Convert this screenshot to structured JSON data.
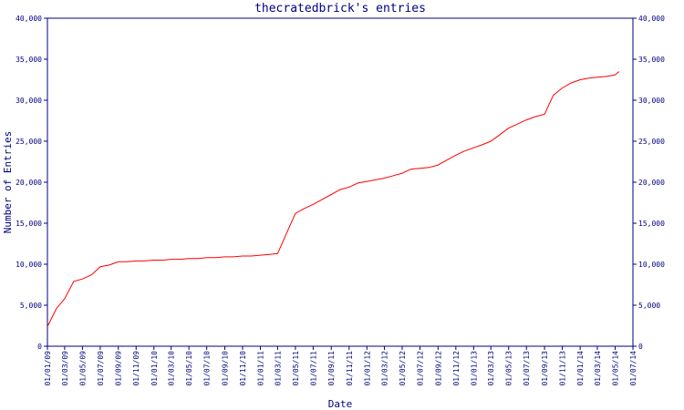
{
  "chart_data": {
    "type": "line",
    "title": "thecratedbrick's entries",
    "x_label": "Date",
    "y_label": "Number of Entries",
    "color": "#ff0000",
    "x": [
      "2009-01-01",
      "2009-02-01",
      "2009-03-01",
      "2009-04-01",
      "2009-05-01",
      "2009-06-01",
      "2009-07-01",
      "2009-08-01",
      "2009-09-01",
      "2009-10-01",
      "2009-11-01",
      "2009-12-01",
      "2010-01-01",
      "2010-02-01",
      "2010-03-01",
      "2010-04-01",
      "2010-05-01",
      "2010-06-01",
      "2010-07-01",
      "2010-08-01",
      "2010-09-01",
      "2010-10-01",
      "2010-11-01",
      "2010-12-01",
      "2011-01-01",
      "2011-02-01",
      "2011-03-01",
      "2011-04-01",
      "2011-05-01",
      "2011-06-01",
      "2011-07-01",
      "2011-08-01",
      "2011-09-01",
      "2011-10-01",
      "2011-11-01",
      "2011-12-01",
      "2012-01-01",
      "2012-02-01",
      "2012-03-01",
      "2012-04-01",
      "2012-05-01",
      "2012-06-01",
      "2012-07-01",
      "2012-08-01",
      "2012-09-01",
      "2012-10-01",
      "2012-11-01",
      "2012-12-01",
      "2013-01-01",
      "2013-02-01",
      "2013-03-01",
      "2013-04-01",
      "2013-05-01",
      "2013-06-01",
      "2013-07-01",
      "2013-08-01",
      "2013-09-01",
      "2013-10-01",
      "2013-11-01",
      "2013-12-01",
      "2014-01-01",
      "2014-02-01",
      "2014-03-01",
      "2014-04-01",
      "2014-05-01",
      "2014-05-15"
    ],
    "values": [
      2400,
      4600,
      5800,
      7900,
      8200,
      8700,
      9700,
      9900,
      10300,
      10300,
      10400,
      10400,
      10500,
      10500,
      10600,
      10600,
      10700,
      10700,
      10800,
      10800,
      10900,
      10900,
      11000,
      11000,
      11100,
      11200,
      11300,
      13800,
      16200,
      16800,
      17300,
      17900,
      18500,
      19100,
      19400,
      19900,
      20100,
      20300,
      20500,
      20800,
      21100,
      21600,
      21700,
      21800,
      22100,
      22700,
      23300,
      23800,
      24200,
      24600,
      25000,
      25800,
      26600,
      27100,
      27600,
      28000,
      28300,
      30600,
      31500,
      32100,
      32500,
      32700,
      32800,
      32900,
      33100,
      33500
    ],
    "xlim": [
      "2009-01-01",
      "2014-07-01"
    ],
    "xticks": [
      {
        "value": "2009-01-01",
        "label": "01/01/09"
      },
      {
        "value": "2009-03-01",
        "label": "01/03/09"
      },
      {
        "value": "2009-05-01",
        "label": "01/05/09"
      },
      {
        "value": "2009-07-01",
        "label": "01/07/09"
      },
      {
        "value": "2009-09-01",
        "label": "01/09/09"
      },
      {
        "value": "2009-11-01",
        "label": "01/11/09"
      },
      {
        "value": "2010-01-01",
        "label": "01/01/10"
      },
      {
        "value": "2010-03-01",
        "label": "01/03/10"
      },
      {
        "value": "2010-05-01",
        "label": "01/05/10"
      },
      {
        "value": "2010-07-01",
        "label": "01/07/10"
      },
      {
        "value": "2010-09-01",
        "label": "01/09/10"
      },
      {
        "value": "2010-11-01",
        "label": "01/11/10"
      },
      {
        "value": "2011-01-01",
        "label": "01/01/11"
      },
      {
        "value": "2011-03-01",
        "label": "01/03/11"
      },
      {
        "value": "2011-05-01",
        "label": "01/05/11"
      },
      {
        "value": "2011-07-01",
        "label": "01/07/11"
      },
      {
        "value": "2011-09-01",
        "label": "01/09/11"
      },
      {
        "value": "2011-11-01",
        "label": "01/11/11"
      },
      {
        "value": "2012-01-01",
        "label": "01/01/12"
      },
      {
        "value": "2012-03-01",
        "label": "01/03/12"
      },
      {
        "value": "2012-05-01",
        "label": "01/05/12"
      },
      {
        "value": "2012-07-01",
        "label": "01/07/12"
      },
      {
        "value": "2012-09-01",
        "label": "01/09/12"
      },
      {
        "value": "2012-11-01",
        "label": "01/11/12"
      },
      {
        "value": "2013-01-01",
        "label": "01/01/13"
      },
      {
        "value": "2013-03-01",
        "label": "01/03/13"
      },
      {
        "value": "2013-05-01",
        "label": "01/05/13"
      },
      {
        "value": "2013-07-01",
        "label": "01/07/13"
      },
      {
        "value": "2013-09-01",
        "label": "01/09/13"
      },
      {
        "value": "2013-11-01",
        "label": "01/11/13"
      },
      {
        "value": "2014-01-01",
        "label": "01/01/14"
      },
      {
        "value": "2014-03-01",
        "label": "01/03/14"
      },
      {
        "value": "2014-05-01",
        "label": "01/05/14"
      },
      {
        "value": "2014-07-01",
        "label": "01/07/14"
      }
    ],
    "ylim": [
      0,
      40000
    ],
    "yticks": [
      0,
      {
        "value": 5000,
        "label": "5,000"
      },
      {
        "value": 10000,
        "label": "10,000"
      },
      {
        "value": 15000,
        "label": "15,000"
      },
      {
        "value": 20000,
        "label": "20,000"
      },
      {
        "value": 25000,
        "label": "25,000"
      },
      {
        "value": 30000,
        "label": "30,000"
      },
      {
        "value": 35000,
        "label": "35,000"
      },
      {
        "value": 40000,
        "label": "40,000"
      }
    ]
  }
}
